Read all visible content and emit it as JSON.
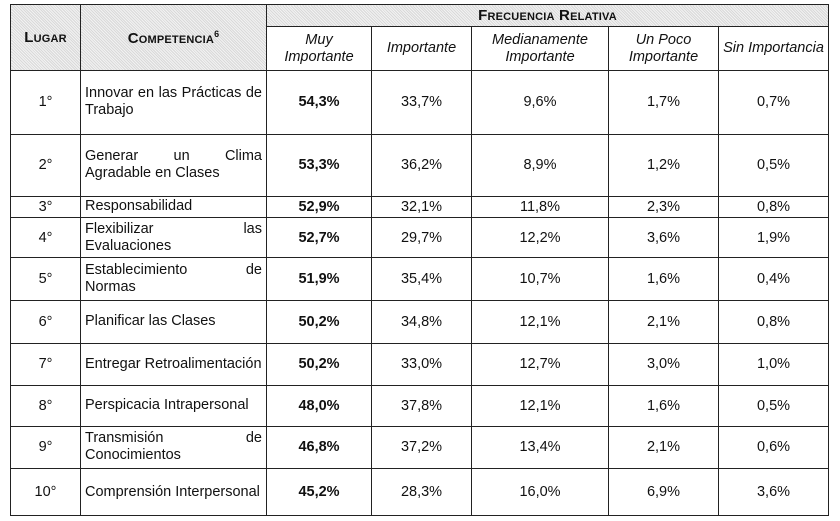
{
  "header": {
    "lugar": "Lugar",
    "competencia": "Competencia",
    "footnote": "6",
    "group": "Frecuencia Relativa",
    "cols": [
      "Muy Importante",
      "Importante",
      "Medianamente Importante",
      "Un Poco Importante",
      "Sin Importancia"
    ]
  },
  "rows": [
    {
      "lugar": "1°",
      "comp": "Innovar en las Prácticas de Trabajo",
      "v": [
        "54,3%",
        "33,7%",
        "9,6%",
        "1,7%",
        "0,7%"
      ]
    },
    {
      "lugar": "2°",
      "comp": "Generar un Clima Agradable en Clases",
      "v": [
        "53,3%",
        "36,2%",
        "8,9%",
        "1,2%",
        "0,5%"
      ]
    },
    {
      "lugar": "3°",
      "comp": "Responsabilidad",
      "v": [
        "52,9%",
        "32,1%",
        "11,8%",
        "2,3%",
        "0,8%"
      ]
    },
    {
      "lugar": "4°",
      "comp": "Flexibilizar las Evaluaciones",
      "v": [
        "52,7%",
        "29,7%",
        "12,2%",
        "3,6%",
        "1,9%"
      ]
    },
    {
      "lugar": "5°",
      "comp": "Establecimiento de Normas",
      "v": [
        "51,9%",
        "35,4%",
        "10,7%",
        "1,6%",
        "0,4%"
      ]
    },
    {
      "lugar": "6°",
      "comp": "Planificar las Clases",
      "v": [
        "50,2%",
        "34,8%",
        "12,1%",
        "2,1%",
        "0,8%"
      ]
    },
    {
      "lugar": "7°",
      "comp": "Entregar Retroalimentación",
      "v": [
        "50,2%",
        "33,0%",
        "12,7%",
        "3,0%",
        "1,0%"
      ]
    },
    {
      "lugar": "8°",
      "comp": "Perspicacia Intrapersonal",
      "v": [
        "48,0%",
        "37,8%",
        "12,1%",
        "1,6%",
        "0,5%"
      ]
    },
    {
      "lugar": "9°",
      "comp": "Transmisión de Conocimientos",
      "v": [
        "46,8%",
        "37,2%",
        "13,4%",
        "2,1%",
        "0,6%"
      ]
    },
    {
      "lugar": "10°",
      "comp": "Comprensión Interpersonal",
      "v": [
        "45,2%",
        "28,3%",
        "16,0%",
        "6,9%",
        "3,6%"
      ]
    }
  ]
}
